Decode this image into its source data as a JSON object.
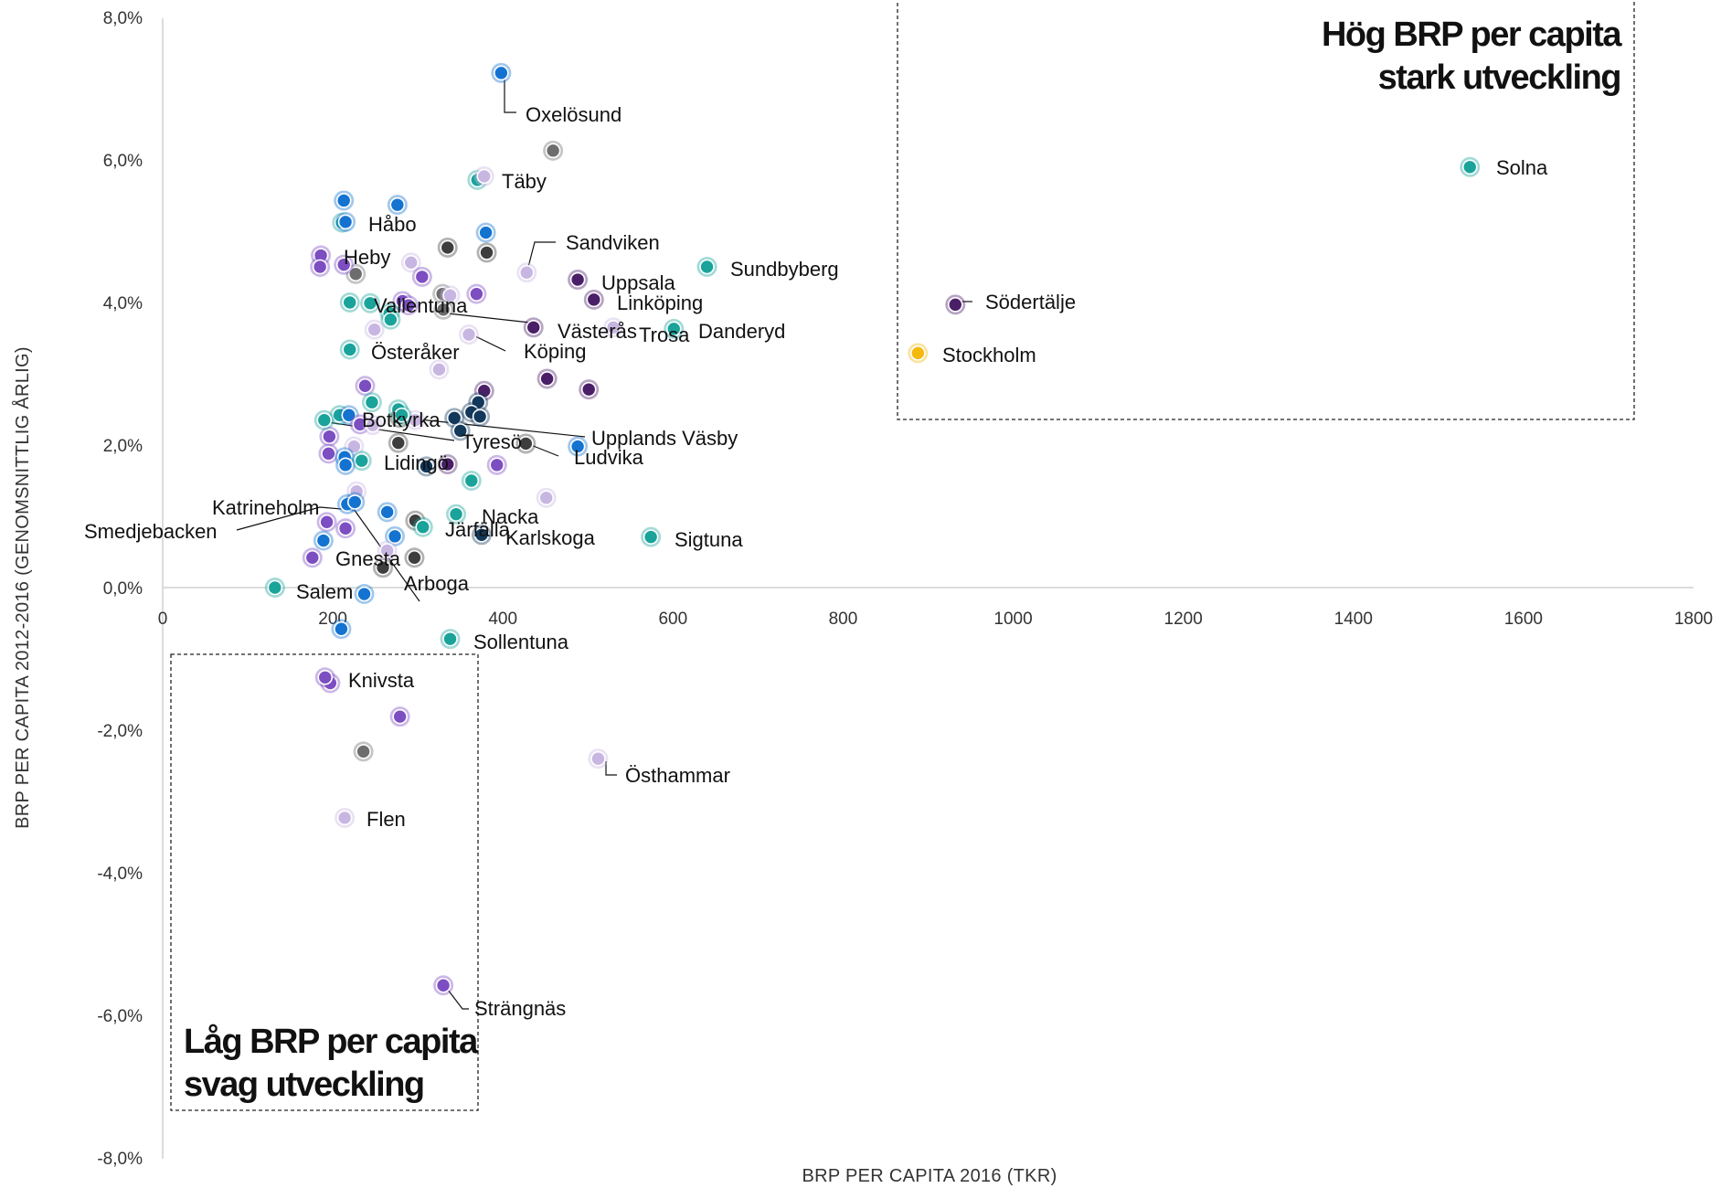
{
  "chart_data": {
    "type": "scatter",
    "title": "",
    "xlabel": "BRP PER CAPITA 2016 (TKR)",
    "ylabel": "BRP PER CAPITA 2012-2016 (GENOMSNITTLIG ÅRLIG)",
    "xlim": [
      0,
      1800
    ],
    "ylim": [
      -8,
      8
    ],
    "x_ticks": [
      "0",
      "200",
      "400",
      "600",
      "800",
      "1000",
      "1200",
      "1400",
      "1600",
      "1800"
    ],
    "y_ticks": [
      "8,0%",
      "6,0%",
      "4,0%",
      "2,0%",
      "0,0%",
      "-2,0%",
      "-4,0%",
      "-6,0%",
      "-8,0%"
    ],
    "grid": false,
    "legend": "none",
    "colors": {
      "teal": "#1aa39a",
      "blue": "#1473d0",
      "navy": "#12385c",
      "purple": "#7c4ec2",
      "darkpurple": "#4a1f68",
      "lavender": "#c8b6e2",
      "grey": "#6d6d6d",
      "dark": "#3e3e3e",
      "yellow": "#f5b80c"
    },
    "quadrants": [
      {
        "line1": "Hög BRP per capita",
        "line2": "stark utveckling"
      },
      {
        "line1": "Låg BRP per capita",
        "line2": "svag utveckling"
      }
    ],
    "labeled_points": [
      {
        "name": "Solna",
        "x": 1537,
        "y": 5.9,
        "color": "teal"
      },
      {
        "name": "Södertälje",
        "x": 932,
        "y": 3.97,
        "color": "darkpurple"
      },
      {
        "name": "Stockholm",
        "x": 888,
        "y": 3.29,
        "color": "yellow"
      },
      {
        "name": "Oxelösund",
        "x": 398,
        "y": 7.22,
        "color": "blue"
      },
      {
        "name": "Täby",
        "x": 378,
        "y": 5.77,
        "color": "lavender"
      },
      {
        "name": "Håbo",
        "x": 215,
        "y": 5.13,
        "color": "blue"
      },
      {
        "name": "Sandviken",
        "x": 428,
        "y": 4.42,
        "color": "lavender"
      },
      {
        "name": "Heby",
        "x": 213,
        "y": 4.53,
        "color": "purple"
      },
      {
        "name": "Sundbyberg",
        "x": 640,
        "y": 4.5,
        "color": "teal"
      },
      {
        "name": "Uppsala",
        "x": 488,
        "y": 4.32,
        "color": "darkpurple"
      },
      {
        "name": "Linköping",
        "x": 507,
        "y": 4.04,
        "color": "darkpurple"
      },
      {
        "name": "Vallentuna",
        "x": 330,
        "y": 3.9,
        "color": "grey"
      },
      {
        "name": "Västerås",
        "x": 436,
        "y": 3.65,
        "color": "darkpurple"
      },
      {
        "name": "Trosa",
        "x": 530,
        "y": 3.65,
        "color": "lavender"
      },
      {
        "name": "Danderyd",
        "x": 601,
        "y": 3.63,
        "color": "teal"
      },
      {
        "name": "Österåker",
        "x": 220,
        "y": 3.34,
        "color": "teal"
      },
      {
        "name": "Köping",
        "x": 360,
        "y": 3.55,
        "color": "lavender"
      },
      {
        "name": "Botkyrka",
        "x": 281,
        "y": 2.42,
        "color": "teal"
      },
      {
        "name": "Upplands Väsby",
        "x": 350,
        "y": 2.2,
        "color": "navy"
      },
      {
        "name": "Tyresö",
        "x": 190,
        "y": 2.35,
        "color": "teal"
      },
      {
        "name": "Ludvika",
        "x": 427,
        "y": 2.02,
        "color": "dark"
      },
      {
        "name": "Lidingö",
        "x": 310,
        "y": 1.7,
        "color": "navy"
      },
      {
        "name": "Katrineholm",
        "x": 217,
        "y": 1.17,
        "color": "blue"
      },
      {
        "name": "Nacka",
        "x": 345,
        "y": 1.03,
        "color": "teal"
      },
      {
        "name": "Smedjebacken",
        "x": 226,
        "y": 1.2,
        "color": "blue"
      },
      {
        "name": "Järfälla",
        "x": 306,
        "y": 0.85,
        "color": "teal"
      },
      {
        "name": "Karlskoga",
        "x": 375,
        "y": 0.74,
        "color": "navy"
      },
      {
        "name": "Sigtuna",
        "x": 574,
        "y": 0.71,
        "color": "teal"
      },
      {
        "name": "Gnesta",
        "x": 264,
        "y": 0.52,
        "color": "lavender"
      },
      {
        "name": "Arboga",
        "x": 296,
        "y": 0.42,
        "color": "dark"
      },
      {
        "name": "Salem",
        "x": 132,
        "y": 0.0,
        "color": "teal"
      },
      {
        "name": "Sollentuna",
        "x": 338,
        "y": -0.72,
        "color": "teal"
      },
      {
        "name": "Knivsta",
        "x": 191,
        "y": -1.26,
        "color": "purple"
      },
      {
        "name": "Östhammar",
        "x": 512,
        "y": -2.4,
        "color": "lavender"
      },
      {
        "name": "Flen",
        "x": 214,
        "y": -3.23,
        "color": "lavender"
      },
      {
        "name": "Strängnäs",
        "x": 330,
        "y": -5.58,
        "color": "purple"
      }
    ],
    "unlabeled_points": [
      {
        "x": 459,
        "y": 6.13,
        "color": "grey"
      },
      {
        "x": 370,
        "y": 5.72,
        "color": "teal"
      },
      {
        "x": 213,
        "y": 5.43,
        "color": "blue"
      },
      {
        "x": 276,
        "y": 5.37,
        "color": "blue"
      },
      {
        "x": 211,
        "y": 5.12,
        "color": "teal"
      },
      {
        "x": 380,
        "y": 4.98,
        "color": "blue"
      },
      {
        "x": 335,
        "y": 4.77,
        "color": "dark"
      },
      {
        "x": 381,
        "y": 4.7,
        "color": "dark"
      },
      {
        "x": 186,
        "y": 4.66,
        "color": "purple"
      },
      {
        "x": 185,
        "y": 4.5,
        "color": "purple"
      },
      {
        "x": 292,
        "y": 4.56,
        "color": "lavender"
      },
      {
        "x": 227,
        "y": 4.4,
        "color": "grey"
      },
      {
        "x": 305,
        "y": 4.36,
        "color": "purple"
      },
      {
        "x": 329,
        "y": 4.12,
        "color": "grey"
      },
      {
        "x": 338,
        "y": 4.1,
        "color": "lavender"
      },
      {
        "x": 369,
        "y": 4.12,
        "color": "purple"
      },
      {
        "x": 220,
        "y": 4.0,
        "color": "teal"
      },
      {
        "x": 244,
        "y": 3.99,
        "color": "teal"
      },
      {
        "x": 282,
        "y": 4.02,
        "color": "purple"
      },
      {
        "x": 289,
        "y": 3.96,
        "color": "purple"
      },
      {
        "x": 267,
        "y": 3.85,
        "color": "teal"
      },
      {
        "x": 268,
        "y": 3.76,
        "color": "teal"
      },
      {
        "x": 249,
        "y": 3.62,
        "color": "lavender"
      },
      {
        "x": 325,
        "y": 3.06,
        "color": "lavender"
      },
      {
        "x": 452,
        "y": 2.93,
        "color": "darkpurple"
      },
      {
        "x": 238,
        "y": 2.83,
        "color": "purple"
      },
      {
        "x": 378,
        "y": 2.76,
        "color": "darkpurple"
      },
      {
        "x": 501,
        "y": 2.78,
        "color": "darkpurple"
      },
      {
        "x": 246,
        "y": 2.6,
        "color": "teal"
      },
      {
        "x": 371,
        "y": 2.6,
        "color": "navy"
      },
      {
        "x": 277,
        "y": 2.5,
        "color": "teal"
      },
      {
        "x": 363,
        "y": 2.46,
        "color": "navy"
      },
      {
        "x": 208,
        "y": 2.42,
        "color": "teal"
      },
      {
        "x": 219,
        "y": 2.42,
        "color": "blue"
      },
      {
        "x": 279,
        "y": 2.38,
        "color": "dark"
      },
      {
        "x": 343,
        "y": 2.38,
        "color": "navy"
      },
      {
        "x": 373,
        "y": 2.4,
        "color": "navy"
      },
      {
        "x": 232,
        "y": 2.29,
        "color": "purple"
      },
      {
        "x": 247,
        "y": 2.28,
        "color": "lavender"
      },
      {
        "x": 297,
        "y": 2.35,
        "color": "lavender"
      },
      {
        "x": 196,
        "y": 2.12,
        "color": "purple"
      },
      {
        "x": 277,
        "y": 2.03,
        "color": "dark"
      },
      {
        "x": 225,
        "y": 1.98,
        "color": "lavender"
      },
      {
        "x": 488,
        "y": 1.98,
        "color": "blue"
      },
      {
        "x": 195,
        "y": 1.88,
        "color": "purple"
      },
      {
        "x": 214,
        "y": 1.83,
        "color": "blue"
      },
      {
        "x": 234,
        "y": 1.78,
        "color": "teal"
      },
      {
        "x": 215,
        "y": 1.72,
        "color": "blue"
      },
      {
        "x": 335,
        "y": 1.73,
        "color": "darkpurple"
      },
      {
        "x": 393,
        "y": 1.72,
        "color": "purple"
      },
      {
        "x": 363,
        "y": 1.5,
        "color": "teal"
      },
      {
        "x": 228,
        "y": 1.35,
        "color": "lavender"
      },
      {
        "x": 451,
        "y": 1.26,
        "color": "lavender"
      },
      {
        "x": 264,
        "y": 1.06,
        "color": "blue"
      },
      {
        "x": 297,
        "y": 0.94,
        "color": "dark"
      },
      {
        "x": 193,
        "y": 0.92,
        "color": "purple"
      },
      {
        "x": 215,
        "y": 0.83,
        "color": "purple"
      },
      {
        "x": 273,
        "y": 0.72,
        "color": "blue"
      },
      {
        "x": 189,
        "y": 0.66,
        "color": "blue"
      },
      {
        "x": 176,
        "y": 0.42,
        "color": "purple"
      },
      {
        "x": 259,
        "y": 0.28,
        "color": "dark"
      },
      {
        "x": 237,
        "y": -0.09,
        "color": "blue"
      },
      {
        "x": 210,
        "y": -0.58,
        "color": "blue"
      },
      {
        "x": 197,
        "y": -1.34,
        "color": "purple"
      },
      {
        "x": 279,
        "y": -1.81,
        "color": "purple"
      },
      {
        "x": 236,
        "y": -2.3,
        "color": "grey"
      }
    ]
  }
}
